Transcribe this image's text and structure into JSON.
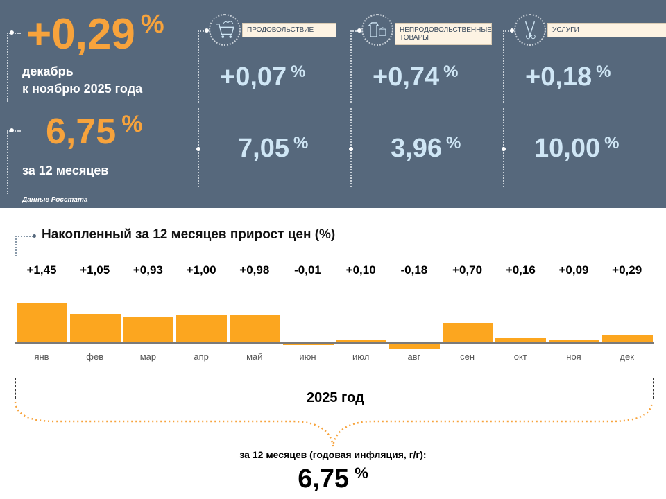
{
  "monthly": {
    "value": "+0,29",
    "pct": "%",
    "caption1": "декабрь",
    "caption2": "к ноябрю 2025 года"
  },
  "annual": {
    "value": "6,75",
    "pct": "%",
    "caption": "за 12 месяцев"
  },
  "source": "Данные Росстата",
  "categories": [
    {
      "label": "ПРОДОВОЛЬСТВИЕ",
      "icon": "shopping-cart-icon",
      "monthly": "+0,07",
      "annual": "7,05"
    },
    {
      "label": "НЕПРОДОВОЛЬСТВЕННЫЕ ТОВАРЫ",
      "icon": "clothes-bag-icon",
      "monthly": "+0,74",
      "annual": "3,96"
    },
    {
      "label": "УСЛУГИ",
      "icon": "scissors-comb-icon",
      "monthly": "+0,18",
      "annual": "10,00"
    }
  ],
  "pct_sign": "%",
  "chart_data": {
    "type": "bar",
    "title": "Накопленный за 12 месяцев прирост цен (%)",
    "categories": [
      "янв",
      "фев",
      "мар",
      "апр",
      "май",
      "июн",
      "июл",
      "авг",
      "сен",
      "окт",
      "ноя",
      "дек"
    ],
    "values": [
      1.45,
      1.05,
      0.93,
      1.0,
      0.98,
      -0.01,
      0.1,
      -0.18,
      0.7,
      0.16,
      0.09,
      0.29
    ],
    "labels": [
      "+1,45",
      "+1,05",
      "+0,93",
      "+1,00",
      "+0,98",
      "-0,01",
      "+0,10",
      "-0,18",
      "+0,70",
      "+0,16",
      "+0,09",
      "+0,29"
    ],
    "color": "#fca61f",
    "xlabel": "2025 год"
  },
  "footer": {
    "caption": "за 12 месяцев (годовая инфляция, г/г):",
    "value": "6,75",
    "pct": "%"
  }
}
